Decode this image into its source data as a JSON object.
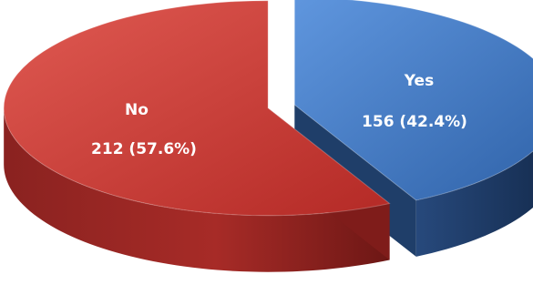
{
  "chart_data": {
    "type": "pie",
    "title": "",
    "slices": [
      {
        "label": "Yes",
        "value": 156,
        "percent": 42.4,
        "display": "156 (42.4%)",
        "color": "#3f78c4",
        "side_color": "#1f3e69"
      },
      {
        "label": "No",
        "value": 212,
        "percent": 57.6,
        "display": "212 (57.6%)",
        "color": "#cc3b35",
        "side_color": "#7f1c1a"
      }
    ],
    "style": "3d-exploded",
    "legend": "none"
  }
}
